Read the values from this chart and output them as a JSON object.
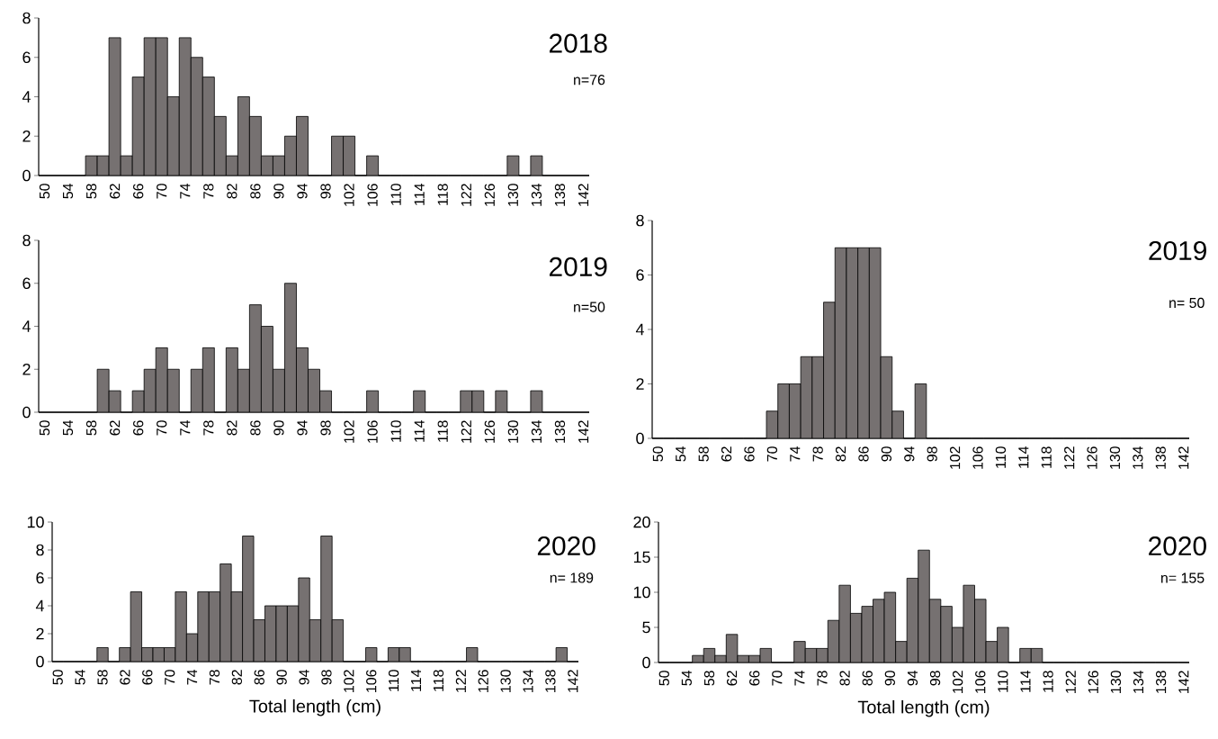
{
  "chart_data": [
    {
      "type": "bar",
      "title": "2018",
      "subtitle": "n=76",
      "categories": [
        "50",
        null,
        "54",
        null,
        "58",
        null,
        "62",
        null,
        "66",
        null,
        "70",
        null,
        "74",
        null,
        "78",
        null,
        "82",
        null,
        "86",
        null,
        "90",
        null,
        "94",
        null,
        "98",
        null,
        "102",
        null,
        "106",
        null,
        "110",
        null,
        "114",
        null,
        "118",
        null,
        "122",
        null,
        "126",
        null,
        "130",
        null,
        "134",
        null,
        "138",
        null,
        "142"
      ],
      "values": [
        0,
        0,
        0,
        0,
        1,
        1,
        7,
        1,
        5,
        7,
        7,
        4,
        7,
        6,
        5,
        3,
        1,
        4,
        3,
        1,
        1,
        2,
        3,
        0,
        0,
        2,
        2,
        0,
        1,
        0,
        0,
        0,
        0,
        0,
        0,
        0,
        0,
        0,
        0,
        0,
        1,
        0,
        1,
        0,
        0,
        0,
        0
      ],
      "color": "#767171",
      "ylim": [
        0,
        8
      ],
      "yticks": [
        0,
        2,
        4,
        6,
        8
      ]
    },
    {
      "type": "bar",
      "title": "2019",
      "subtitle": "n=50",
      "categories": [
        "50",
        null,
        "54",
        null,
        "58",
        null,
        "62",
        null,
        "66",
        null,
        "70",
        null,
        "74",
        null,
        "78",
        null,
        "82",
        null,
        "86",
        null,
        "90",
        null,
        "94",
        null,
        "98",
        null,
        "102",
        null,
        "106",
        null,
        "110",
        null,
        "114",
        null,
        "118",
        null,
        "122",
        null,
        "126",
        null,
        "130",
        null,
        "134",
        null,
        "138",
        null,
        "142"
      ],
      "values": [
        0,
        0,
        0,
        0,
        0,
        2,
        1,
        0,
        1,
        2,
        3,
        2,
        0,
        2,
        3,
        0,
        3,
        2,
        5,
        4,
        2,
        6,
        3,
        2,
        1,
        0,
        0,
        0,
        1,
        0,
        0,
        0,
        1,
        0,
        0,
        0,
        1,
        1,
        0,
        1,
        0,
        0,
        1,
        0,
        0,
        0,
        0
      ],
      "color": "#767171",
      "ylim": [
        0,
        8
      ],
      "yticks": [
        0,
        2,
        4,
        6,
        8
      ]
    },
    {
      "type": "bar",
      "title": "2019",
      "subtitle": "n= 50",
      "categories": [
        "50",
        null,
        "54",
        null,
        "58",
        null,
        "62",
        null,
        "66",
        null,
        "70",
        null,
        "74",
        null,
        "78",
        null,
        "82",
        null,
        "86",
        null,
        "90",
        null,
        "94",
        null,
        "98",
        null,
        "102",
        null,
        "106",
        null,
        "110",
        null,
        "114",
        null,
        "118",
        null,
        "122",
        null,
        "126",
        null,
        "130",
        null,
        "134",
        null,
        "138",
        null,
        "142"
      ],
      "values": [
        0,
        0,
        0,
        0,
        0,
        0,
        0,
        0,
        0,
        0,
        1,
        2,
        2,
        3,
        3,
        5,
        7,
        7,
        7,
        7,
        3,
        1,
        0,
        2,
        0,
        0,
        0,
        0,
        0,
        0,
        0,
        0,
        0,
        0,
        0,
        0,
        0,
        0,
        0,
        0,
        0,
        0,
        0,
        0,
        0,
        0,
        0
      ],
      "color": "#767171",
      "ylim": [
        0,
        8
      ],
      "yticks": [
        0,
        2,
        4,
        6,
        8
      ]
    },
    {
      "type": "bar",
      "title": "2020",
      "subtitle": "n= 189",
      "xlabel": "Total length (cm)",
      "categories": [
        "50",
        null,
        "54",
        null,
        "58",
        null,
        "62",
        null,
        "66",
        null,
        "70",
        null,
        "74",
        null,
        "78",
        null,
        "82",
        null,
        "86",
        null,
        "90",
        null,
        "94",
        null,
        "98",
        null,
        "102",
        null,
        "106",
        null,
        "110",
        null,
        "114",
        null,
        "118",
        null,
        "122",
        null,
        "126",
        null,
        "130",
        null,
        "134",
        null,
        "138",
        null,
        "142"
      ],
      "values": [
        0,
        0,
        0,
        0,
        1,
        0,
        1,
        5,
        1,
        1,
        1,
        5,
        2,
        5,
        5,
        7,
        5,
        9,
        3,
        4,
        4,
        4,
        6,
        3,
        9,
        3,
        0,
        0,
        1,
        0,
        1,
        1,
        0,
        0,
        0,
        0,
        0,
        1,
        0,
        0,
        0,
        0,
        0,
        0,
        0,
        1,
        0
      ],
      "color": "#767171",
      "ylim": [
        0,
        10
      ],
      "yticks": [
        0,
        2,
        4,
        6,
        8,
        10
      ]
    },
    {
      "type": "bar",
      "title": "2020",
      "subtitle": "n= 155",
      "xlabel": "Total length (cm)",
      "categories": [
        "50",
        null,
        "54",
        null,
        "58",
        null,
        "62",
        null,
        "66",
        null,
        "70",
        null,
        "74",
        null,
        "78",
        null,
        "82",
        null,
        "86",
        null,
        "90",
        null,
        "94",
        null,
        "98",
        null,
        "102",
        null,
        "106",
        null,
        "110",
        null,
        "114",
        null,
        "118",
        null,
        "122",
        null,
        "126",
        null,
        "130",
        null,
        "134",
        null,
        "138",
        null,
        "142"
      ],
      "values": [
        0,
        0,
        0,
        1,
        2,
        1,
        4,
        1,
        1,
        2,
        0,
        0,
        3,
        2,
        2,
        6,
        11,
        7,
        8,
        9,
        10,
        3,
        12,
        16,
        9,
        8,
        5,
        11,
        9,
        3,
        5,
        0,
        2,
        2,
        0,
        0,
        0,
        0,
        0,
        0,
        0,
        0,
        0,
        0,
        0,
        0,
        0
      ],
      "color": "#767171",
      "ylim": [
        0,
        20
      ],
      "yticks": [
        0,
        5,
        10,
        15,
        20
      ]
    }
  ]
}
